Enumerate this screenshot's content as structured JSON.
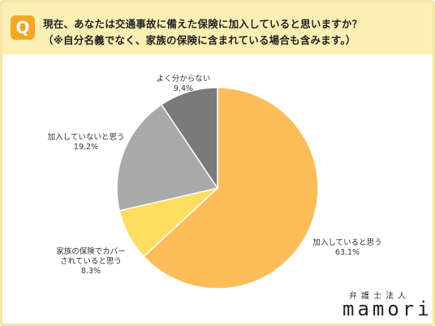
{
  "question": {
    "badge": "Q",
    "line1": "現在、あなたは交通事故に備えた保険に加入していると思いますか？",
    "line2": "（※自分名義でなく、家族の保険に含まれている場合も含みます。）"
  },
  "chart_data": {
    "type": "pie",
    "slices": [
      {
        "label": "加入していると思う",
        "value": 63.1,
        "value_label": "63.1%",
        "color": "#FFBD59"
      },
      {
        "label": "家族の保険でカバーされていると思う",
        "label_lines": [
          "家族の保険でカバー",
          "されていると思う"
        ],
        "value": 8.3,
        "value_label": "8.3%",
        "color": "#FFDD60"
      },
      {
        "label": "加入していないと思う",
        "value": 19.2,
        "value_label": "19.2%",
        "color": "#A9A9A9"
      },
      {
        "label": "よく分からない",
        "value": 9.4,
        "value_label": "9.4%",
        "color": "#7A7A7A"
      }
    ]
  },
  "logo": {
    "sub": "弁護士法人",
    "main": "mamori"
  }
}
